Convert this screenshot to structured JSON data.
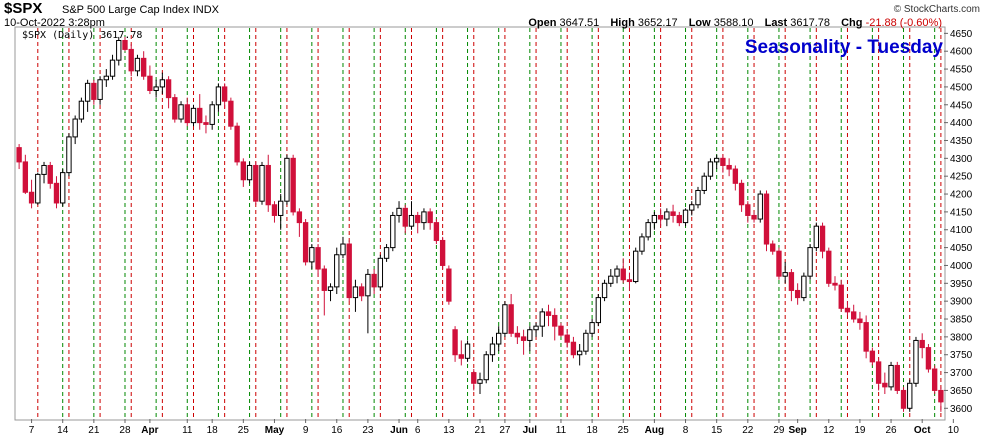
{
  "header": {
    "symbol": "$SPX",
    "name": "S&P 500 Large Cap Index",
    "exchange": "INDX",
    "datetime": "10-Oct-2022 3:28pm",
    "copyright": "© StockCharts.com",
    "open_label": "Open",
    "open": "3647.51",
    "high_label": "High",
    "high": "3652.17",
    "low_label": "Low",
    "low": "3588.10",
    "last_label": "Last",
    "last": "3617.78",
    "chg_label": "Chg",
    "chg": "-21.88 (-0.60%)"
  },
  "legend": "$SPX (Daily) 3617.78",
  "overlay_title": "Seasonality - Tuesday",
  "colors": {
    "up": "#000000",
    "down": "#d0103a",
    "green_line": "#008800",
    "red_line": "#cc0000",
    "title": "#0000cc"
  },
  "chart_data": {
    "type": "candlestick",
    "title": "Seasonality - Tuesday",
    "ylim": [
      3570,
      4665
    ],
    "y_ticks": [
      3600,
      3650,
      3700,
      3750,
      3800,
      3850,
      3900,
      3950,
      4000,
      4050,
      4100,
      4150,
      4200,
      4250,
      4300,
      4350,
      4400,
      4450,
      4500,
      4550,
      4600,
      4650
    ],
    "x_tick_labels": [
      {
        "label": "7",
        "i": 2
      },
      {
        "label": "14",
        "i": 7
      },
      {
        "label": "21",
        "i": 12
      },
      {
        "label": "28",
        "i": 17
      },
      {
        "label": "Apr",
        "i": 21
      },
      {
        "label": "11",
        "i": 27
      },
      {
        "label": "18",
        "i": 31
      },
      {
        "label": "25",
        "i": 36
      },
      {
        "label": "May",
        "i": 41
      },
      {
        "label": "9",
        "i": 46
      },
      {
        "label": "16",
        "i": 51
      },
      {
        "label": "23",
        "i": 56
      },
      {
        "label": "Jun",
        "i": 61
      },
      {
        "label": "6",
        "i": 64
      },
      {
        "label": "13",
        "i": 69
      },
      {
        "label": "21",
        "i": 74
      },
      {
        "label": "27",
        "i": 78
      },
      {
        "label": "Jul",
        "i": 82
      },
      {
        "label": "11",
        "i": 87
      },
      {
        "label": "18",
        "i": 92
      },
      {
        "label": "25",
        "i": 97
      },
      {
        "label": "Aug",
        "i": 102
      },
      {
        "label": "8",
        "i": 107
      },
      {
        "label": "15",
        "i": 112
      },
      {
        "label": "22",
        "i": 117
      },
      {
        "label": "29",
        "i": 122
      },
      {
        "label": "Sep",
        "i": 125
      },
      {
        "label": "12",
        "i": 130
      },
      {
        "label": "19",
        "i": 135
      },
      {
        "label": "26",
        "i": 140
      },
      {
        "label": "Oct",
        "i": 145
      },
      {
        "label": "10",
        "i": 150
      }
    ],
    "vlines": [
      {
        "i": 3,
        "c": "r"
      },
      {
        "i": 7,
        "c": "g"
      },
      {
        "i": 8,
        "c": "r"
      },
      {
        "i": 12,
        "c": "g"
      },
      {
        "i": 13,
        "c": "r"
      },
      {
        "i": 17,
        "c": "g"
      },
      {
        "i": 18,
        "c": "r"
      },
      {
        "i": 22,
        "c": "g"
      },
      {
        "i": 23,
        "c": "r"
      },
      {
        "i": 27,
        "c": "g"
      },
      {
        "i": 28,
        "c": "r"
      },
      {
        "i": 32,
        "c": "g"
      },
      {
        "i": 33,
        "c": "r"
      },
      {
        "i": 37,
        "c": "g"
      },
      {
        "i": 38,
        "c": "r"
      },
      {
        "i": 42,
        "c": "g"
      },
      {
        "i": 43,
        "c": "r"
      },
      {
        "i": 47,
        "c": "g"
      },
      {
        "i": 48,
        "c": "r"
      },
      {
        "i": 52,
        "c": "g"
      },
      {
        "i": 53,
        "c": "r"
      },
      {
        "i": 57,
        "c": "g"
      },
      {
        "i": 58,
        "c": "r"
      },
      {
        "i": 62,
        "c": "g"
      },
      {
        "i": 63,
        "c": "r"
      },
      {
        "i": 67,
        "c": "g"
      },
      {
        "i": 68,
        "c": "r"
      },
      {
        "i": 72,
        "c": "g"
      },
      {
        "i": 73,
        "c": "r"
      },
      {
        "i": 77,
        "c": "g"
      },
      {
        "i": 78,
        "c": "r"
      },
      {
        "i": 82,
        "c": "g"
      },
      {
        "i": 83,
        "c": "r"
      },
      {
        "i": 87,
        "c": "g"
      },
      {
        "i": 88,
        "c": "r"
      },
      {
        "i": 92,
        "c": "g"
      },
      {
        "i": 93,
        "c": "r"
      },
      {
        "i": 97,
        "c": "g"
      },
      {
        "i": 98,
        "c": "r"
      },
      {
        "i": 102,
        "c": "g"
      },
      {
        "i": 103,
        "c": "r"
      },
      {
        "i": 107,
        "c": "g"
      },
      {
        "i": 108,
        "c": "r"
      },
      {
        "i": 112,
        "c": "g"
      },
      {
        "i": 113,
        "c": "r"
      },
      {
        "i": 117,
        "c": "g"
      },
      {
        "i": 118,
        "c": "r"
      },
      {
        "i": 122,
        "c": "g"
      },
      {
        "i": 123,
        "c": "r"
      },
      {
        "i": 127,
        "c": "g"
      },
      {
        "i": 128,
        "c": "r"
      },
      {
        "i": 132,
        "c": "g"
      },
      {
        "i": 133,
        "c": "r"
      },
      {
        "i": 137,
        "c": "g"
      },
      {
        "i": 138,
        "c": "r"
      },
      {
        "i": 142,
        "c": "g"
      },
      {
        "i": 143,
        "c": "r"
      },
      {
        "i": 147,
        "c": "g"
      },
      {
        "i": 148,
        "c": "r"
      }
    ],
    "ohlc": [
      [
        4330,
        4340,
        4270,
        4290
      ],
      [
        4290,
        4310,
        4200,
        4205
      ],
      [
        4205,
        4240,
        4160,
        4175
      ],
      [
        4175,
        4260,
        4170,
        4255
      ],
      [
        4255,
        4290,
        4230,
        4280
      ],
      [
        4280,
        4290,
        4215,
        4230
      ],
      [
        4230,
        4250,
        4160,
        4175
      ],
      [
        4175,
        4270,
        4165,
        4260
      ],
      [
        4260,
        4370,
        4250,
        4360
      ],
      [
        4360,
        4420,
        4340,
        4410
      ],
      [
        4410,
        4470,
        4400,
        4460
      ],
      [
        4460,
        4520,
        4430,
        4510
      ],
      [
        4510,
        4520,
        4450,
        4465
      ],
      [
        4465,
        4530,
        4450,
        4520
      ],
      [
        4520,
        4550,
        4500,
        4530
      ],
      [
        4530,
        4590,
        4520,
        4575
      ],
      [
        4575,
        4640,
        4560,
        4630
      ],
      [
        4630,
        4640,
        4600,
        4605
      ],
      [
        4605,
        4620,
        4530,
        4545
      ],
      [
        4545,
        4590,
        4530,
        4580
      ],
      [
        4580,
        4600,
        4520,
        4530
      ],
      [
        4530,
        4560,
        4480,
        4490
      ],
      [
        4490,
        4520,
        4470,
        4500
      ],
      [
        4500,
        4540,
        4480,
        4520
      ],
      [
        4520,
        4530,
        4440,
        4470
      ],
      [
        4470,
        4480,
        4400,
        4410
      ],
      [
        4410,
        4460,
        4400,
        4450
      ],
      [
        4450,
        4470,
        4390,
        4400
      ],
      [
        4400,
        4450,
        4390,
        4440
      ],
      [
        4440,
        4480,
        4380,
        4400
      ],
      [
        4400,
        4420,
        4370,
        4395
      ],
      [
        4395,
        4460,
        4380,
        4450
      ],
      [
        4450,
        4510,
        4430,
        4500
      ],
      [
        4500,
        4510,
        4440,
        4460
      ],
      [
        4460,
        4470,
        4380,
        4390
      ],
      [
        4390,
        4400,
        4280,
        4290
      ],
      [
        4290,
        4300,
        4220,
        4240
      ],
      [
        4240,
        4290,
        4230,
        4280
      ],
      [
        4280,
        4290,
        4170,
        4180
      ],
      [
        4180,
        4290,
        4170,
        4280
      ],
      [
        4280,
        4310,
        4150,
        4170
      ],
      [
        4170,
        4180,
        4120,
        4140
      ],
      [
        4140,
        4200,
        4100,
        4180
      ],
      [
        4180,
        4310,
        4170,
        4300
      ],
      [
        4300,
        4310,
        4140,
        4150
      ],
      [
        4150,
        4160,
        4080,
        4120
      ],
      [
        4120,
        4130,
        4000,
        4010
      ],
      [
        4010,
        4060,
        3990,
        4050
      ],
      [
        4050,
        4060,
        3970,
        3990
      ],
      [
        3990,
        4000,
        3860,
        3930
      ],
      [
        3930,
        3950,
        3900,
        3940
      ],
      [
        3940,
        4050,
        3920,
        4030
      ],
      [
        4030,
        4080,
        4020,
        4060
      ],
      [
        4060,
        4070,
        3900,
        3910
      ],
      [
        3910,
        3960,
        3870,
        3940
      ],
      [
        3940,
        3950,
        3900,
        3915
      ],
      [
        3915,
        3990,
        3810,
        3975
      ],
      [
        3975,
        3990,
        3920,
        3940
      ],
      [
        3940,
        4030,
        3930,
        4020
      ],
      [
        4020,
        4060,
        4010,
        4050
      ],
      [
        4050,
        4150,
        4040,
        4140
      ],
      [
        4140,
        4180,
        4120,
        4160
      ],
      [
        4160,
        4170,
        4090,
        4110
      ],
      [
        4110,
        4180,
        4100,
        4140
      ],
      [
        4140,
        4150,
        4090,
        4120
      ],
      [
        4120,
        4160,
        4100,
        4150
      ],
      [
        4150,
        4160,
        4100,
        4120
      ],
      [
        4120,
        4130,
        4060,
        4070
      ],
      [
        4070,
        4080,
        3990,
        4000
      ],
      [
        3990,
        4000,
        3890,
        3900
      ],
      [
        3820,
        3830,
        3730,
        3750
      ],
      [
        3750,
        3790,
        3720,
        3740
      ],
      [
        3740,
        3790,
        3730,
        3780
      ],
      [
        3700,
        3710,
        3650,
        3670
      ],
      [
        3670,
        3700,
        3640,
        3680
      ],
      [
        3680,
        3760,
        3670,
        3750
      ],
      [
        3750,
        3800,
        3730,
        3780
      ],
      [
        3780,
        3830,
        3760,
        3810
      ],
      [
        3810,
        3900,
        3800,
        3890
      ],
      [
        3890,
        3920,
        3800,
        3810
      ],
      [
        3810,
        3830,
        3780,
        3800
      ],
      [
        3800,
        3820,
        3750,
        3790
      ],
      [
        3790,
        3830,
        3760,
        3820
      ],
      [
        3820,
        3840,
        3800,
        3830
      ],
      [
        3830,
        3880,
        3800,
        3870
      ],
      [
        3870,
        3890,
        3830,
        3860
      ],
      [
        3860,
        3880,
        3790,
        3830
      ],
      [
        3830,
        3840,
        3800,
        3805
      ],
      [
        3805,
        3820,
        3770,
        3785
      ],
      [
        3785,
        3800,
        3740,
        3750
      ],
      [
        3750,
        3780,
        3720,
        3760
      ],
      [
        3760,
        3820,
        3750,
        3810
      ],
      [
        3810,
        3850,
        3800,
        3840
      ],
      [
        3840,
        3920,
        3830,
        3910
      ],
      [
        3910,
        3960,
        3900,
        3950
      ],
      [
        3950,
        3990,
        3940,
        3970
      ],
      [
        3970,
        4000,
        3950,
        3990
      ],
      [
        3990,
        4020,
        3950,
        3960
      ],
      [
        3960,
        3980,
        3930,
        3955
      ],
      [
        3955,
        4050,
        3950,
        4040
      ],
      [
        4040,
        4090,
        4030,
        4080
      ],
      [
        4080,
        4130,
        4070,
        4120
      ],
      [
        4120,
        4150,
        4100,
        4140
      ],
      [
        4140,
        4160,
        4110,
        4130
      ],
      [
        4130,
        4160,
        4110,
        4150
      ],
      [
        4150,
        4170,
        4120,
        4140
      ],
      [
        4140,
        4150,
        4110,
        4120
      ],
      [
        4120,
        4160,
        4110,
        4155
      ],
      [
        4155,
        4180,
        4140,
        4170
      ],
      [
        4170,
        4220,
        4160,
        4210
      ],
      [
        4210,
        4260,
        4200,
        4250
      ],
      [
        4250,
        4300,
        4240,
        4290
      ],
      [
        4290,
        4310,
        4270,
        4300
      ],
      [
        4300,
        4310,
        4260,
        4280
      ],
      [
        4280,
        4300,
        4250,
        4270
      ],
      [
        4270,
        4280,
        4210,
        4230
      ],
      [
        4230,
        4240,
        4150,
        4170
      ],
      [
        4170,
        4180,
        4120,
        4140
      ],
      [
        4140,
        4150,
        4120,
        4130
      ],
      [
        4130,
        4210,
        4120,
        4200
      ],
      [
        4200,
        4210,
        4040,
        4060
      ],
      [
        4060,
        4070,
        4030,
        4040
      ],
      [
        4040,
        4050,
        3960,
        3970
      ],
      [
        3970,
        4010,
        3950,
        3980
      ],
      [
        3980,
        3990,
        3900,
        3930
      ],
      [
        3930,
        3950,
        3890,
        3910
      ],
      [
        3910,
        3980,
        3900,
        3970
      ],
      [
        3970,
        4060,
        3960,
        4050
      ],
      [
        4050,
        4120,
        4040,
        4110
      ],
      [
        4110,
        4120,
        4020,
        4040
      ],
      [
        4040,
        4050,
        3940,
        3950
      ],
      [
        3950,
        3970,
        3930,
        3945
      ],
      [
        3945,
        3960,
        3870,
        3880
      ],
      [
        3880,
        3900,
        3860,
        3870
      ],
      [
        3870,
        3890,
        3840,
        3850
      ],
      [
        3850,
        3870,
        3820,
        3840
      ],
      [
        3840,
        3860,
        3740,
        3760
      ],
      [
        3760,
        3770,
        3720,
        3730
      ],
      [
        3730,
        3740,
        3650,
        3670
      ],
      [
        3670,
        3700,
        3640,
        3660
      ],
      [
        3660,
        3730,
        3650,
        3720
      ],
      [
        3720,
        3730,
        3640,
        3650
      ],
      [
        3650,
        3660,
        3590,
        3600
      ],
      [
        3600,
        3680,
        3590,
        3670
      ],
      [
        3670,
        3800,
        3660,
        3790
      ],
      [
        3790,
        3810,
        3740,
        3770
      ],
      [
        3770,
        3780,
        3700,
        3710
      ],
      [
        3710,
        3720,
        3640,
        3650
      ],
      [
        3650,
        3660,
        3590,
        3618
      ]
    ]
  }
}
